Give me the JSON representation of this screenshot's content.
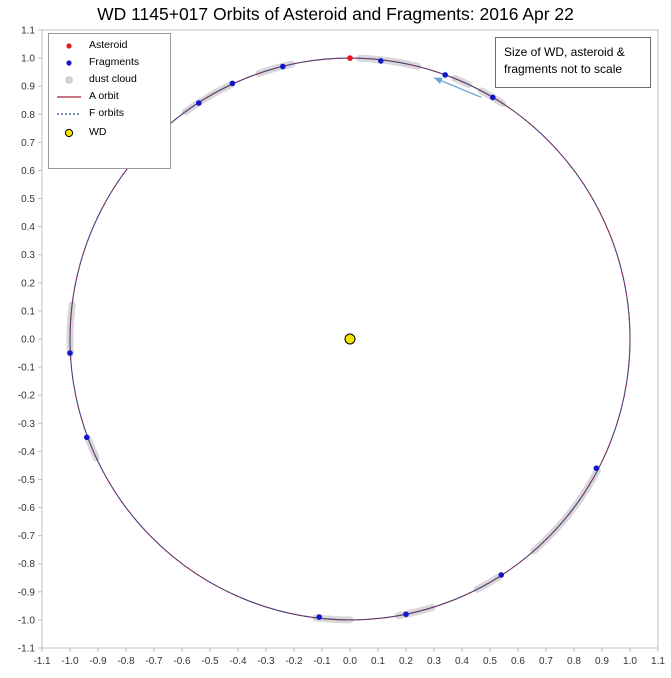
{
  "chart_data": {
    "type": "scatter",
    "title": "WD 1145+017 Orbits of Asteroid and Fragments: 2016 Apr 22",
    "xlim": [
      -1.1,
      1.1
    ],
    "ylim": [
      -1.1,
      1.1
    ],
    "x_ticks": [
      "-1.1",
      "-1.0",
      "-0.9",
      "-0.8",
      "-0.7",
      "-0.6",
      "-0.5",
      "-0.4",
      "-0.3",
      "-0.2",
      "-0.1",
      "0.0",
      "0.1",
      "0.2",
      "0.3",
      "0.4",
      "0.5",
      "0.6",
      "0.7",
      "0.8",
      "0.9",
      "1.0",
      "1.1"
    ],
    "y_ticks": [
      "1.1",
      "1.0",
      "0.9",
      "0.8",
      "0.7",
      "0.6",
      "0.5",
      "0.4",
      "0.3",
      "0.2",
      "0.1",
      "0.0",
      "-0.1",
      "-0.2",
      "-0.3",
      "-0.4",
      "-0.5",
      "-0.6",
      "-0.7",
      "-0.8",
      "-0.9",
      "-1.0",
      "-1.1"
    ],
    "grid": false,
    "legend_position": "top-left",
    "annotation": "Size of WD, asteroid & fragments not to scale",
    "series": [
      {
        "name": "Asteroid",
        "marker": "dot",
        "color": "#e8141e",
        "points": [
          [
            0.0,
            1.0
          ]
        ]
      },
      {
        "name": "Fragments",
        "marker": "dot",
        "color": "#1414c8",
        "points": [
          [
            0.11,
            0.99
          ],
          [
            0.34,
            0.94
          ],
          [
            0.51,
            0.86
          ],
          [
            -0.24,
            0.97
          ],
          [
            -0.42,
            0.91
          ],
          [
            -0.54,
            0.84
          ],
          [
            -0.67,
            0.74
          ],
          [
            -1.0,
            -0.05
          ],
          [
            -0.94,
            -0.35
          ],
          [
            0.88,
            -0.46
          ],
          [
            0.54,
            -0.84
          ],
          [
            0.2,
            -0.98
          ],
          [
            -0.11,
            -0.99
          ]
        ]
      },
      {
        "name": "dust cloud",
        "marker": "blob",
        "color": "#d8d8d8",
        "arcs": [
          [
            88,
            76
          ],
          [
            68,
            65
          ],
          [
            62,
            57
          ],
          [
            102,
            109
          ],
          [
            115,
            121
          ],
          [
            122,
            126
          ],
          [
            131,
            138
          ],
          [
            173,
            183
          ],
          [
            201,
            205
          ],
          [
            311,
            332
          ],
          [
            297,
            302
          ],
          [
            280,
            287
          ],
          [
            263,
            270
          ]
        ]
      },
      {
        "name": "A orbit",
        "marker": "line",
        "color": "#a0283c",
        "radius": 1.0
      },
      {
        "name": "F orbits",
        "marker": "dashed-line",
        "color": "#2a4c9c",
        "radius": 1.0
      },
      {
        "name": "WD",
        "marker": "circle",
        "color": "#f5e600",
        "points": [
          [
            0.0,
            0.0
          ]
        ]
      }
    ],
    "arrow": {
      "from": [
        0.47,
        0.86
      ],
      "to": [
        0.3,
        0.93
      ],
      "color": "#6aa2d0"
    }
  }
}
